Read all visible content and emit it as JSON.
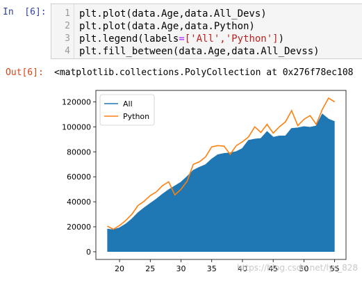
{
  "input_prompt": "In  [6]:",
  "output_prompt": "Out[6]:",
  "code_lines": [
    {
      "n": "1",
      "pre": "plt.plot(data.Age,data.All_Devs)"
    },
    {
      "n": "2",
      "pre": "plt.plot(data.Age,data.Python)"
    },
    {
      "n": "3",
      "a": "plt.legend(labels",
      "b": "=",
      "c": "['All','Python']",
      "d": ")"
    },
    {
      "n": "4",
      "pre": "plt.fill_between(data.Age,data.All_Devss)"
    }
  ],
  "output_text": "<matplotlib.collections.PolyCollection at 0x276f78ec108",
  "watermark": "https://blog.csdn.net/lys_828",
  "colors": {
    "all": "#1f77b4",
    "python": "#ff7f0e"
  },
  "chart_data": {
    "type": "line",
    "x": [
      18,
      19,
      20,
      21,
      22,
      23,
      24,
      25,
      26,
      27,
      28,
      29,
      30,
      31,
      32,
      33,
      34,
      35,
      36,
      37,
      38,
      39,
      40,
      41,
      42,
      43,
      44,
      45,
      46,
      47,
      48,
      49,
      50,
      51,
      52,
      53,
      54,
      55
    ],
    "series": [
      {
        "name": "All",
        "values": [
          18000,
          17500,
          19000,
          22000,
          26000,
          31000,
          35000,
          38500,
          42000,
          46000,
          49500,
          52500,
          55500,
          60000,
          65000,
          67500,
          69500,
          74000,
          77500,
          78500,
          79000,
          80000,
          82500,
          89000,
          90000,
          90500,
          96000,
          91500,
          92500,
          92500,
          98500,
          99000,
          100000,
          99500,
          100500,
          110000,
          106000,
          104000
        ],
        "fill": true
      },
      {
        "name": "Python",
        "values": [
          20500,
          18000,
          21000,
          25000,
          30000,
          37000,
          40500,
          45000,
          48000,
          53000,
          56000,
          45500,
          50000,
          56500,
          70000,
          72000,
          76000,
          84000,
          85000,
          84500,
          78000,
          85000,
          88000,
          92000,
          100000,
          95500,
          102000,
          95000,
          100000,
          104000,
          113000,
          101000,
          106000,
          109000,
          102000,
          114000,
          123000,
          120000
        ]
      }
    ],
    "xticks": [
      20,
      25,
      30,
      35,
      40,
      45,
      50,
      55
    ],
    "yticks": [
      0,
      20000,
      40000,
      60000,
      80000,
      100000,
      120000
    ],
    "xlim": [
      16.15,
      56.85
    ],
    "ylim": [
      -6150,
      129150
    ],
    "legend": [
      "All",
      "Python"
    ],
    "legend_position": "upper-left"
  }
}
